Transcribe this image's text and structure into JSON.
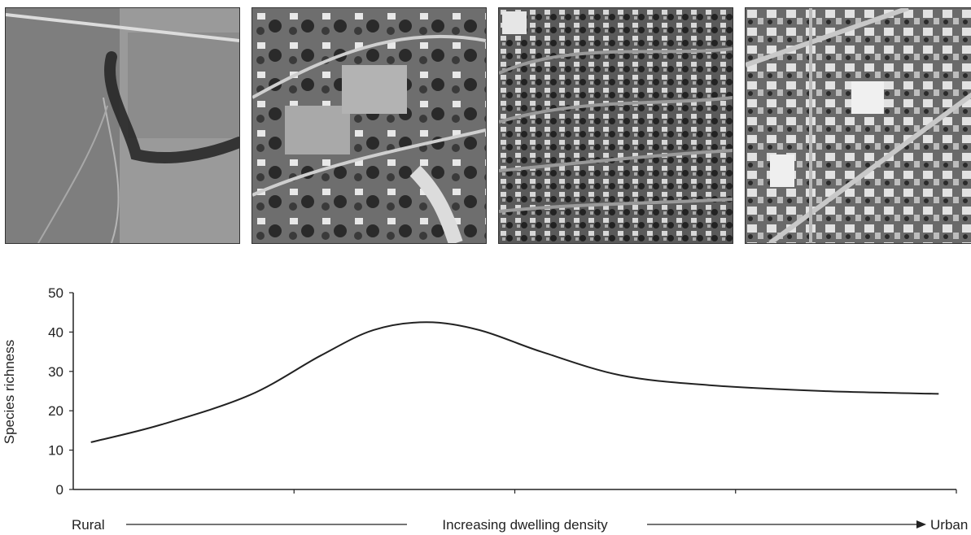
{
  "figure": {
    "panels": [
      {
        "name": "aerial-photo-rural",
        "description_icon": "aerial-photo-icon"
      },
      {
        "name": "aerial-photo-low-density",
        "description_icon": "aerial-photo-icon"
      },
      {
        "name": "aerial-photo-suburban",
        "description_icon": "aerial-photo-icon"
      },
      {
        "name": "aerial-photo-urban",
        "description_icon": "aerial-photo-icon"
      }
    ]
  },
  "chart_data": {
    "type": "line",
    "title": "",
    "ylabel": "Species richness",
    "ylim": [
      0,
      50
    ],
    "yticks": [
      0,
      10,
      20,
      30,
      40,
      50
    ],
    "xlim": [
      0,
      1
    ],
    "x_axis_caption": {
      "left": "Rural",
      "center": "Increasing dwelling density",
      "right": "Urban"
    },
    "grid": false,
    "legend": "none",
    "series": [
      {
        "color": "#222222",
        "points": [
          {
            "x": 0.02,
            "y": 12.0
          },
          {
            "x": 0.1,
            "y": 16.5
          },
          {
            "x": 0.2,
            "y": 24.0
          },
          {
            "x": 0.28,
            "y": 34.0
          },
          {
            "x": 0.34,
            "y": 40.5
          },
          {
            "x": 0.4,
            "y": 42.5
          },
          {
            "x": 0.46,
            "y": 40.5
          },
          {
            "x": 0.53,
            "y": 35.0
          },
          {
            "x": 0.62,
            "y": 29.0
          },
          {
            "x": 0.72,
            "y": 26.5
          },
          {
            "x": 0.85,
            "y": 25.0
          },
          {
            "x": 0.98,
            "y": 24.3
          }
        ]
      }
    ]
  }
}
